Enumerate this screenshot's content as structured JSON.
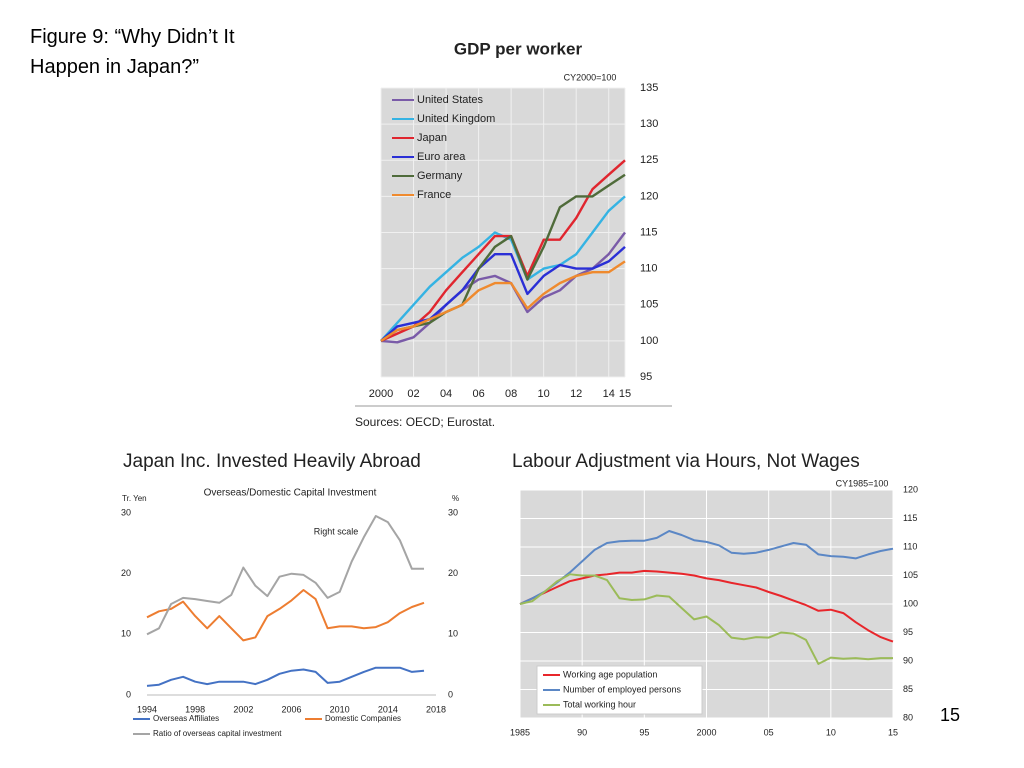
{
  "title": "Figure 9:  “Why Didn’t It Happen in Japan?”",
  "page_number": "15",
  "chart_data": [
    {
      "type": "line",
      "title": "GDP per worker",
      "annotation": "CY2000=100",
      "source": "Sources: OECD; Eurostat.",
      "x": [
        2000,
        2001,
        2002,
        2003,
        2004,
        2005,
        2006,
        2007,
        2008,
        2009,
        2010,
        2011,
        2012,
        2013,
        2014,
        2015
      ],
      "xlim": [
        2000,
        2015
      ],
      "ylim": [
        95,
        135
      ],
      "xticks": [
        2000,
        {
          "value": 2002,
          "label": "02"
        },
        {
          "value": 2004,
          "label": "04"
        },
        {
          "value": 2006,
          "label": "06"
        },
        {
          "value": 2008,
          "label": "08"
        },
        {
          "value": 2010,
          "label": "10"
        },
        {
          "value": 2012,
          "label": "12"
        },
        {
          "value": 2014,
          "label": "14"
        },
        {
          "value": 2015,
          "label": "15"
        }
      ],
      "yticks": [
        95,
        100,
        105,
        110,
        115,
        120,
        125,
        130,
        135
      ],
      "grid": true,
      "legend": "upper left",
      "series": [
        {
          "name": "United States",
          "color": "#7a5ba8",
          "values": [
            100,
            99.8,
            100.5,
            102.5,
            105,
            107,
            108.5,
            109,
            108,
            104,
            106,
            107,
            109,
            110,
            112,
            115
          ]
        },
        {
          "name": "United Kingdom",
          "color": "#35b3e3",
          "values": [
            100,
            102.5,
            105,
            107.5,
            109.5,
            111.5,
            113,
            115,
            114,
            108.5,
            110,
            110.5,
            112,
            115,
            118,
            120
          ]
        },
        {
          "name": "Japan",
          "color": "#e0262f",
          "values": [
            100,
            101,
            102,
            104,
            107,
            109.5,
            112,
            114.5,
            114.5,
            109,
            114,
            114,
            117,
            121,
            123,
            125
          ]
        },
        {
          "name": "Euro area",
          "color": "#2a2fd6",
          "values": [
            100,
            102,
            102.5,
            103,
            105,
            107,
            110,
            112,
            112,
            106.5,
            109,
            110.5,
            110,
            110,
            111,
            113
          ]
        },
        {
          "name": "Germany",
          "color": "#4f6b3a",
          "values": [
            100,
            101.5,
            102,
            102.5,
            104,
            105,
            110,
            113,
            114.5,
            108.5,
            113,
            118.5,
            120,
            120,
            121.5,
            123
          ]
        },
        {
          "name": "France",
          "color": "#ef8a2e",
          "values": [
            100,
            101.5,
            102,
            103,
            104,
            105,
            107,
            108,
            108,
            104.5,
            106.5,
            108,
            109,
            109.5,
            109.5,
            111
          ]
        }
      ]
    },
    {
      "type": "line",
      "title": "Japan Inc. Invested Heavily Abroad",
      "subtitle": "Overseas/Domestic Capital Investment",
      "y_label": "Tr. Yen",
      "y2_label": "%",
      "annotation": "Right scale",
      "x": [
        1994,
        1995,
        1996,
        1997,
        1998,
        1999,
        2000,
        2001,
        2002,
        2003,
        2004,
        2005,
        2006,
        2007,
        2008,
        2009,
        2010,
        2011,
        2012,
        2013,
        2014,
        2015,
        2016,
        2017
      ],
      "xlim": [
        1994,
        2018
      ],
      "ylim": [
        0,
        30
      ],
      "y2lim": [
        0,
        30
      ],
      "xticks": [
        1994,
        1998,
        2002,
        2006,
        2010,
        2014,
        2018
      ],
      "yticks": [
        0,
        10,
        20,
        30
      ],
      "y2ticks": [
        0,
        10,
        20,
        30
      ],
      "grid": false,
      "legend": "below",
      "series": [
        {
          "name": "Overseas Affiliates",
          "color": "#4472c4",
          "values": [
            1.5,
            1.7,
            2.5,
            3,
            2.2,
            1.8,
            2.2,
            2.2,
            2.2,
            1.8,
            2.5,
            3.5,
            4,
            4.2,
            3.8,
            2,
            2.2,
            3,
            3.8,
            4.5,
            4.5,
            4.5,
            3.8,
            4
          ]
        },
        {
          "name": "Domestic Companies",
          "color": "#ed7d31",
          "values": [
            12.8,
            13.8,
            14.2,
            15.4,
            13,
            11,
            13,
            11,
            9,
            9.5,
            13,
            14.2,
            15.6,
            17.3,
            15.8,
            11,
            11.3,
            11.3,
            11,
            11.2,
            12,
            13.5,
            14.5,
            15.2
          ]
        },
        {
          "name": "Ratio of overseas capital investment",
          "color": "#a5a5a5",
          "axis": "y2",
          "values": [
            10,
            11,
            15,
            16,
            15.8,
            15.5,
            15.2,
            16.5,
            21,
            18,
            16.3,
            19.5,
            20,
            19.8,
            18.5,
            16,
            17,
            22,
            26,
            29.5,
            28.5,
            25.5,
            20.8,
            20.8
          ]
        }
      ]
    },
    {
      "type": "line",
      "title": "Labour Adjustment via Hours, Not Wages",
      "annotation": "CY1985=100",
      "x": [
        1985,
        1986,
        1987,
        1988,
        1989,
        1990,
        1991,
        1992,
        1993,
        1994,
        1995,
        1996,
        1997,
        1998,
        1999,
        2000,
        2001,
        2002,
        2003,
        2004,
        2005,
        2006,
        2007,
        2008,
        2009,
        2010,
        2011,
        2012,
        2013,
        2014,
        2015
      ],
      "xlim": [
        1985,
        2015
      ],
      "ylim": [
        80,
        120
      ],
      "xticks": [
        1985,
        {
          "value": 1990,
          "label": "90"
        },
        {
          "value": 1995,
          "label": "95"
        },
        2000,
        {
          "value": 2005,
          "label": "05"
        },
        {
          "value": 2010,
          "label": "10"
        },
        {
          "value": 2015,
          "label": "15"
        }
      ],
      "yticks": [
        80,
        85,
        90,
        95,
        100,
        105,
        110,
        115,
        120
      ],
      "grid": true,
      "legend": "lower left",
      "series": [
        {
          "name": "Working age population",
          "color": "#e8262b",
          "values": [
            100,
            101,
            102,
            103,
            104,
            104.5,
            105,
            105.2,
            105.5,
            105.5,
            105.8,
            105.7,
            105.5,
            105.3,
            105,
            104.5,
            104.2,
            103.7,
            103.3,
            102.9,
            102.1,
            101.4,
            100.6,
            99.8,
            98.8,
            99,
            98.4,
            96.8,
            95.4,
            94.2,
            93.4
          ]
        },
        {
          "name": "Number of employed persons",
          "color": "#5b87c5",
          "values": [
            100,
            101,
            102.2,
            103.8,
            105.5,
            107.5,
            109.5,
            110.7,
            111,
            111.1,
            111.1,
            111.6,
            112.8,
            112.1,
            111.2,
            110.9,
            110.3,
            109,
            108.8,
            109,
            109.5,
            110.1,
            110.7,
            110.4,
            108.7,
            108.4,
            108.3,
            108,
            108.7,
            109.3,
            109.7
          ]
        },
        {
          "name": "Total working hour",
          "color": "#9bbb59",
          "values": [
            100,
            100.5,
            102.2,
            104,
            105.2,
            105,
            105,
            104.2,
            101,
            100.7,
            100.8,
            101.5,
            101.3,
            99.3,
            97.3,
            97.8,
            96.3,
            94.1,
            93.8,
            94.2,
            94.1,
            95,
            94.8,
            93.7,
            89.5,
            90.6,
            90.4,
            90.5,
            90.3,
            90.5,
            90.5
          ]
        }
      ]
    }
  ]
}
